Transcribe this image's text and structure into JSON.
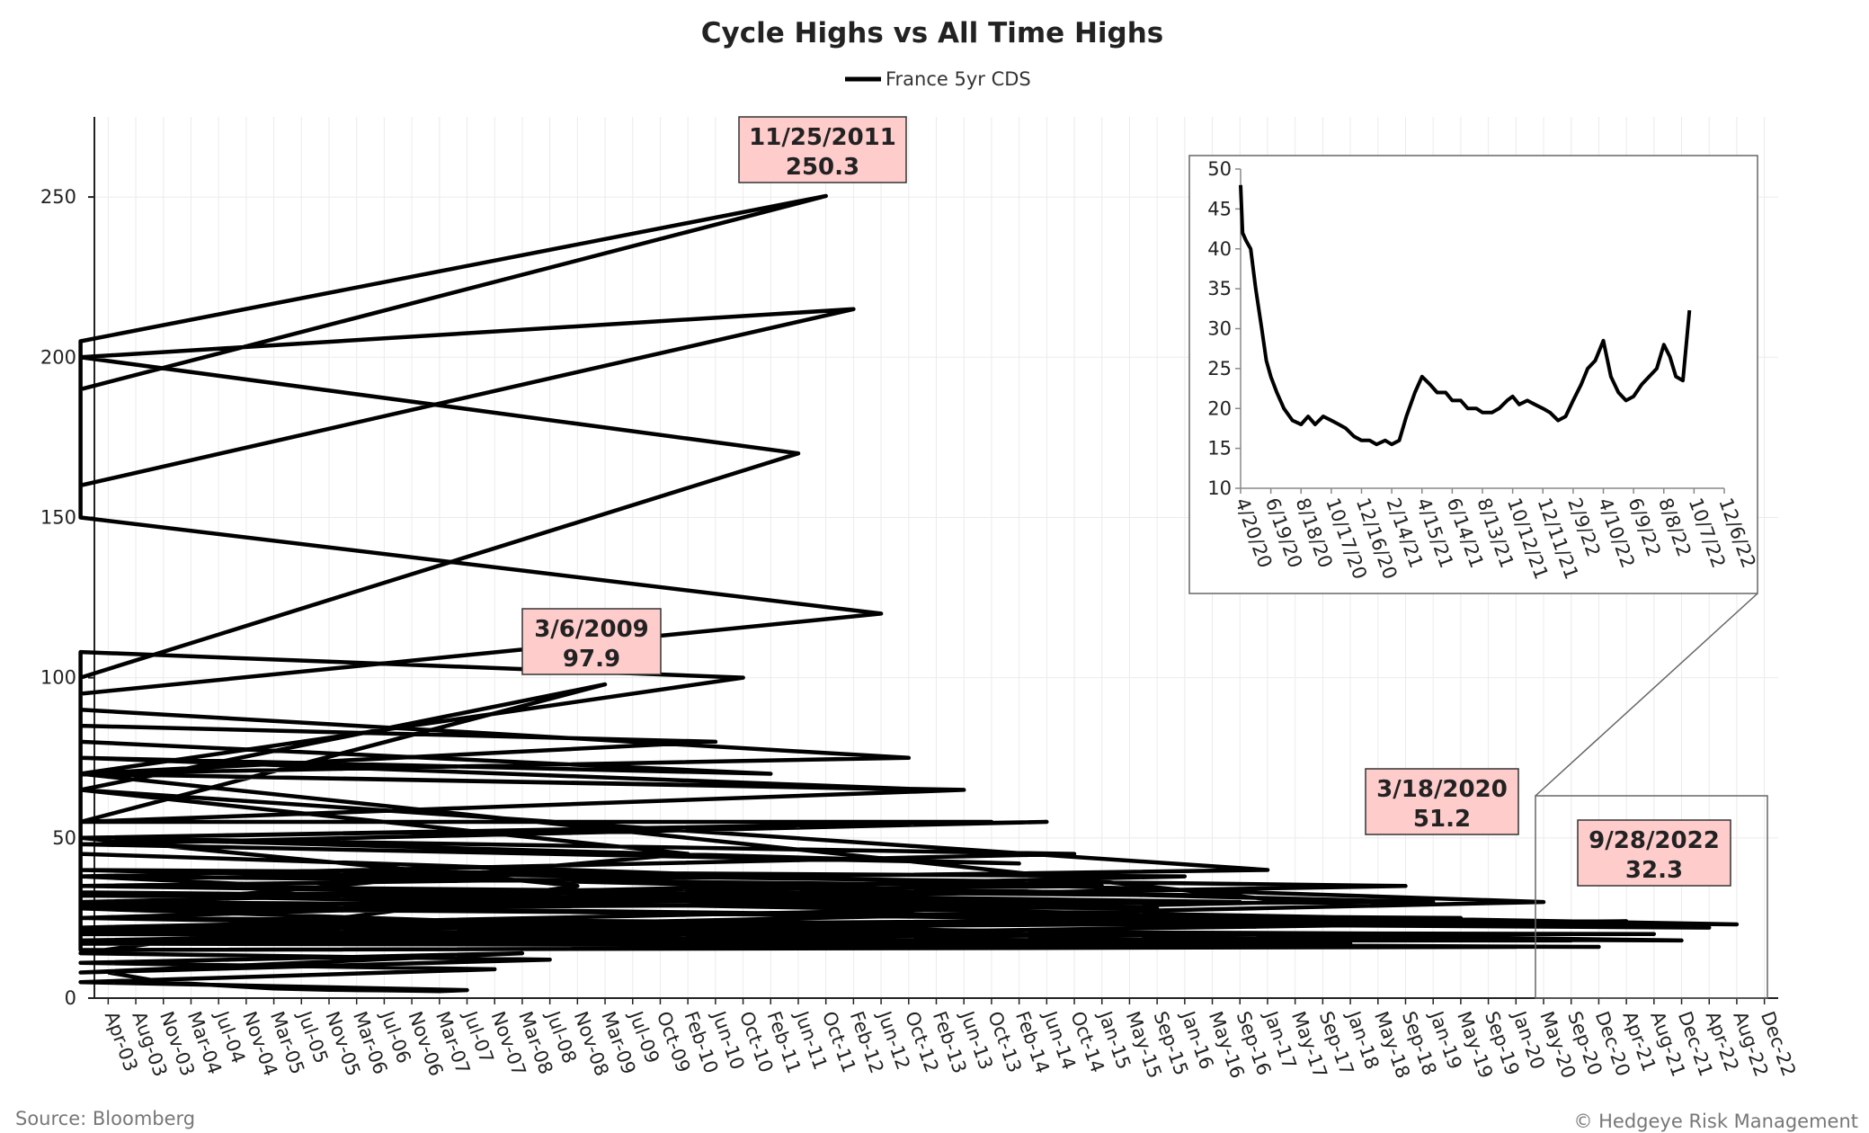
{
  "footer": {
    "source": "Source: Bloomberg",
    "copyright": "© Hedgeye Risk Management"
  },
  "colors": {
    "line": "#000000",
    "annotation_fill": "#ffcccc",
    "grid": "#ebebeb",
    "axis": "#222222",
    "connector": "#666666"
  },
  "chart_data": [
    {
      "type": "line",
      "title": "Cycle Highs vs All Time Highs",
      "legend": [
        "France 5yr CDS"
      ],
      "legend_position": "top-center",
      "grid": true,
      "ylim": [
        0,
        275
      ],
      "yticks": [
        0,
        50,
        100,
        150,
        200,
        250
      ],
      "xticks": [
        "Apr-03",
        "Aug-03",
        "Nov-03",
        "Mar-04",
        "Jul-04",
        "Nov-04",
        "Mar-05",
        "Jul-05",
        "Nov-05",
        "Mar-06",
        "Jul-06",
        "Nov-06",
        "Mar-07",
        "Jul-07",
        "Nov-07",
        "Mar-08",
        "Jul-08",
        "Nov-08",
        "Mar-09",
        "Jul-09",
        "Oct-09",
        "Feb-10",
        "Jun-10",
        "Oct-10",
        "Feb-11",
        "Jun-11",
        "Oct-11",
        "Feb-12",
        "Jun-12",
        "Oct-12",
        "Feb-13",
        "Jun-13",
        "Oct-13",
        "Feb-14",
        "Jun-14",
        "Oct-14",
        "Jan-15",
        "May-15",
        "Sep-15",
        "Jan-16",
        "May-16",
        "Sep-16",
        "Jan-17",
        "May-17",
        "Sep-17",
        "Jan-18",
        "May-18",
        "Sep-18",
        "Jan-19",
        "May-19",
        "Sep-19",
        "Jan-20",
        "May-20",
        "Sep-20",
        "Dec-20",
        "Apr-21",
        "Aug-21",
        "Dec-21",
        "Apr-22",
        "Aug-22",
        "Dec-22"
      ],
      "series": [
        {
          "name": "France 5yr CDS",
          "x": [
            "Apr-03",
            "Aug-03",
            "Nov-03",
            "Mar-04",
            "Jul-04",
            "Nov-04",
            "Mar-05",
            "Jul-05",
            "Nov-05",
            "Mar-06",
            "Jul-06",
            "Nov-06",
            "Mar-07",
            "Jul-07",
            "Sep-07",
            "Nov-07",
            "Jan-08",
            "Mar-08",
            "May-08",
            "Jul-08",
            "Sep-08",
            "Nov-08",
            "Dec-08",
            "Jan-09",
            "Feb-09",
            "Mar-09",
            "Apr-09",
            "May-09",
            "Jul-09",
            "Aug-09",
            "Oct-09",
            "Dec-09",
            "Feb-10",
            "Mar-10",
            "Apr-10",
            "May-10",
            "Jun-10",
            "Jul-10",
            "Aug-10",
            "Sep-10",
            "Oct-10",
            "Nov-10",
            "Dec-10",
            "Jan-11",
            "Feb-11",
            "Mar-11",
            "Apr-11",
            "May-11",
            "Jun-11",
            "Jul-11",
            "Aug-11",
            "Sep-11",
            "Oct-11",
            "Nov-11",
            "Dec-11",
            "Jan-12",
            "Feb-12",
            "Mar-12",
            "Apr-12",
            "May-12",
            "Jun-12",
            "Jul-12",
            "Aug-12",
            "Sep-12",
            "Oct-12",
            "Nov-12",
            "Dec-12",
            "Jan-13",
            "Feb-13",
            "Apr-13",
            "Jun-13",
            "Aug-13",
            "Oct-13",
            "Dec-13",
            "Feb-14",
            "Apr-14",
            "Jun-14",
            "Aug-14",
            "Oct-14",
            "Dec-14",
            "Jan-15",
            "Mar-15",
            "May-15",
            "Jul-15",
            "Sep-15",
            "Nov-15",
            "Jan-16",
            "Mar-16",
            "May-16",
            "Jul-16",
            "Sep-16",
            "Nov-16",
            "Jan-17",
            "Feb-17",
            "Mar-17",
            "Apr-17",
            "May-17",
            "Jul-17",
            "Sep-17",
            "Nov-17",
            "Jan-18",
            "Mar-18",
            "May-18",
            "Jul-18",
            "Sep-18",
            "Nov-18",
            "Jan-19",
            "Mar-19",
            "May-19",
            "Jul-19",
            "Sep-19",
            "Nov-19",
            "Jan-20",
            "Feb-20",
            "Mar-20",
            "Apr-20",
            "May-20",
            "Jul-20",
            "Sep-20",
            "Nov-20",
            "Dec-20",
            "Feb-21",
            "Apr-21",
            "Jun-21",
            "Aug-21",
            "Oct-21",
            "Dec-21",
            "Feb-22",
            "Apr-22",
            "Jun-22",
            "Aug-22",
            "Sep-22"
          ],
          "values": [
            8.0,
            6.5,
            5.0,
            4.5,
            4.0,
            3.5,
            3.0,
            2.8,
            2.6,
            2.5,
            2.4,
            2.3,
            2.2,
            2.5,
            5.0,
            9.0,
            11.0,
            14.0,
            8.0,
            12.0,
            14.0,
            35.0,
            50.0,
            40.0,
            65.0,
            97.9,
            55.0,
            38.0,
            30.0,
            25.0,
            22.0,
            28.0,
            45.0,
            65.0,
            55.0,
            85.0,
            80.0,
            70.0,
            75.0,
            70.0,
            100.0,
            108.0,
            90.0,
            75.0,
            70.0,
            80.0,
            70.0,
            100.0,
            170.0,
            200.0,
            160.0,
            190.0,
            250.3,
            205.0,
            180.0,
            160.0,
            215.0,
            200.0,
            175.0,
            150.0,
            120.0,
            95.0,
            80.0,
            90.0,
            75.0,
            70.0,
            80.0,
            75.0,
            65.0,
            70.0,
            65.0,
            55.0,
            55.0,
            50.0,
            42.0,
            48.0,
            55.0,
            50.0,
            45.0,
            38.0,
            35.0,
            32.0,
            30.0,
            33.0,
            28.0,
            30.0,
            38.0,
            40.0,
            32.0,
            35.0,
            30.0,
            35.0,
            40.0,
            65.0,
            55.0,
            70.0,
            30.0,
            22.0,
            20.0,
            18.0,
            17.0,
            18.0,
            25.0,
            28.0,
            35.0,
            40.0,
            30.0,
            28.0,
            25.0,
            22.0,
            20.0,
            18.0,
            16.0,
            15.0,
            51.2,
            45.0,
            30.0,
            20.0,
            18.0,
            18.0,
            16.0,
            17.0,
            24.0,
            21.0,
            20.0,
            20.0,
            18.0,
            25.0,
            22.0,
            29.0,
            23.0,
            32.3
          ]
        }
      ],
      "annotations": [
        {
          "label": "3/6/2009",
          "value": "97.9"
        },
        {
          "label": "11/25/2011",
          "value": "250.3"
        },
        {
          "label": "3/18/2020",
          "value": "51.2"
        },
        {
          "label": "9/28/2022",
          "value": "32.3"
        }
      ]
    },
    {
      "type": "line",
      "role": "inset",
      "ylim": [
        10,
        50
      ],
      "yticks": [
        10,
        15,
        20,
        25,
        30,
        35,
        40,
        45,
        50
      ],
      "xticks": [
        "4/20/20",
        "6/19/20",
        "8/18/20",
        "10/17/20",
        "12/16/20",
        "2/14/21",
        "4/15/21",
        "6/14/21",
        "8/13/21",
        "10/12/21",
        "12/11/21",
        "2/9/22",
        "4/10/22",
        "6/9/22",
        "8/8/22",
        "10/7/22",
        "12/6/22"
      ],
      "series": [
        {
          "name": "France 5yr CDS",
          "x": [
            "4/20/20",
            "4/24/20",
            "5/1/20",
            "5/10/20",
            "5/20/20",
            "6/1/20",
            "6/10/20",
            "6/19/20",
            "7/1/20",
            "7/15/20",
            "8/1/20",
            "8/18/20",
            "9/1/20",
            "9/15/20",
            "10/1/20",
            "10/17/20",
            "11/1/20",
            "11/15/20",
            "12/1/20",
            "12/16/20",
            "1/1/21",
            "1/15/21",
            "2/1/21",
            "2/14/21",
            "3/1/21",
            "3/15/21",
            "4/1/21",
            "4/15/21",
            "5/1/21",
            "5/15/21",
            "6/1/21",
            "6/14/21",
            "7/1/21",
            "7/15/21",
            "8/1/21",
            "8/13/21",
            "9/1/21",
            "9/15/21",
            "10/1/21",
            "10/12/21",
            "10/25/21",
            "11/10/21",
            "11/25/21",
            "12/11/21",
            "12/25/21",
            "1/10/22",
            "1/25/22",
            "2/9/22",
            "2/25/22",
            "3/10/22",
            "3/25/22",
            "4/10/22",
            "4/25/22",
            "5/10/22",
            "5/25/22",
            "6/9/22",
            "6/25/22",
            "7/10/22",
            "7/25/22",
            "8/8/22",
            "8/20/22",
            "9/1/22",
            "9/15/22",
            "9/28/22"
          ],
          "values": [
            48.0,
            42.0,
            41.0,
            40.0,
            35.0,
            30.0,
            26.0,
            24.0,
            22.0,
            20.0,
            18.5,
            18.0,
            19.0,
            18.0,
            19.0,
            18.5,
            18.0,
            17.5,
            16.5,
            16.0,
            16.0,
            15.5,
            16.0,
            15.5,
            16.0,
            19.0,
            22.0,
            24.0,
            23.0,
            22.0,
            22.0,
            21.0,
            21.0,
            20.0,
            20.0,
            19.5,
            19.5,
            20.0,
            21.0,
            21.5,
            20.5,
            21.0,
            20.5,
            20.0,
            19.5,
            18.5,
            19.0,
            21.0,
            23.0,
            25.0,
            26.0,
            28.5,
            24.0,
            22.0,
            21.0,
            21.5,
            23.0,
            24.0,
            25.0,
            28.0,
            26.5,
            24.0,
            23.5,
            32.3
          ]
        }
      ]
    }
  ]
}
